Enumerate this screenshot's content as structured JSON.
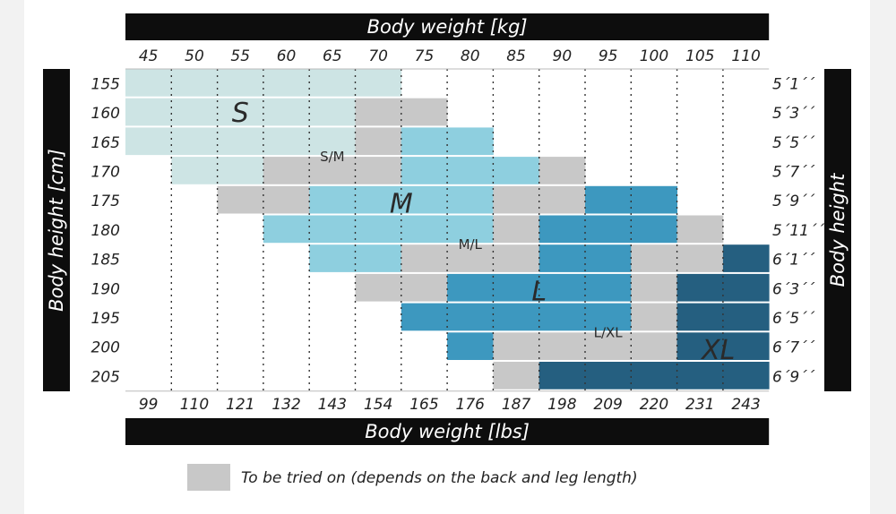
{
  "chart_data": {
    "type": "heatmap",
    "title_top": "Body weight [kg]",
    "title_bottom": "Body weight [lbs]",
    "ylabel_left": "Body height [cm]",
    "ylabel_right": "Body height",
    "weight_kg": [
      "45",
      "50",
      "55",
      "60",
      "65",
      "70",
      "75",
      "80",
      "85",
      "90",
      "95",
      "100",
      "105",
      "110"
    ],
    "weight_lbs": [
      "99",
      "110",
      "121",
      "132",
      "143",
      "154",
      "165",
      "176",
      "187",
      "198",
      "209",
      "220",
      "231",
      "243"
    ],
    "height_cm": [
      "155",
      "160",
      "165",
      "170",
      "175",
      "180",
      "185",
      "190",
      "195",
      "200",
      "205"
    ],
    "height_ft": [
      "5´1´´",
      "5´3´´",
      "5´5´´",
      "5´7´´",
      "5´9´´",
      "5´11´´",
      "6´1´´",
      "6´3´´",
      "6´5´´",
      "6´7´´",
      "6´9´´"
    ],
    "size_colors": {
      "S": "#cde4e4",
      "M": "#8ecfdf",
      "L": "#3d98bf",
      "XL": "#255f80",
      "gray": "#c8c8c8"
    },
    "grid_rows": [
      [
        "S",
        "S",
        "S",
        "S",
        "S",
        "S",
        "",
        "",
        "",
        "",
        "",
        "",
        "",
        ""
      ],
      [
        "S",
        "S",
        "S",
        "S",
        "S",
        "gray",
        "gray",
        "",
        "",
        "",
        "",
        "",
        "",
        ""
      ],
      [
        "S",
        "S",
        "S",
        "S",
        "S",
        "gray",
        "M",
        "M",
        "",
        "",
        "",
        "",
        "",
        ""
      ],
      [
        "",
        "S",
        "S",
        "gray",
        "gray",
        "gray",
        "M",
        "M",
        "M",
        "gray",
        "",
        "",
        "",
        ""
      ],
      [
        "",
        "",
        "gray",
        "gray",
        "M",
        "M",
        "M",
        "M",
        "gray",
        "gray",
        "L",
        "L",
        "",
        ""
      ],
      [
        "",
        "",
        "",
        "M",
        "M",
        "M",
        "M",
        "M",
        "gray",
        "L",
        "L",
        "L",
        "gray",
        ""
      ],
      [
        "",
        "",
        "",
        "",
        "M",
        "M",
        "gray",
        "gray",
        "gray",
        "L",
        "L",
        "gray",
        "gray",
        "XL"
      ],
      [
        "",
        "",
        "",
        "",
        "",
        "gray",
        "gray",
        "L",
        "L",
        "L",
        "L",
        "gray",
        "XL",
        "XL"
      ],
      [
        "",
        "",
        "",
        "",
        "",
        "",
        "L",
        "L",
        "L",
        "L",
        "L",
        "gray",
        "XL",
        "XL"
      ],
      [
        "",
        "",
        "",
        "",
        "",
        "",
        "",
        "L",
        "gray",
        "gray",
        "gray",
        "gray",
        "XL",
        "XL"
      ],
      [
        "",
        "",
        "",
        "",
        "",
        "",
        "",
        "",
        "gray",
        "XL",
        "XL",
        "XL",
        "XL",
        "XL"
      ]
    ],
    "zone_labels": [
      {
        "text": "S",
        "row": 1.5,
        "col": 2.5,
        "style": "big"
      },
      {
        "text": "S/M",
        "row": 3,
        "col": 4.5,
        "style": "small"
      },
      {
        "text": "M",
        "row": 4.6,
        "col": 6,
        "style": "big"
      },
      {
        "text": "M/L",
        "row": 6,
        "col": 7.5,
        "style": "small"
      },
      {
        "text": "L",
        "row": 7.6,
        "col": 9,
        "style": "big"
      },
      {
        "text": "L/XL",
        "row": 9,
        "col": 10.5,
        "style": "small"
      },
      {
        "text": "XL",
        "row": 9.6,
        "col": 12.9,
        "style": "big"
      }
    ],
    "legend": [
      {
        "color": "gray",
        "label": "To be tried on (depends on the back and leg length)"
      }
    ]
  }
}
